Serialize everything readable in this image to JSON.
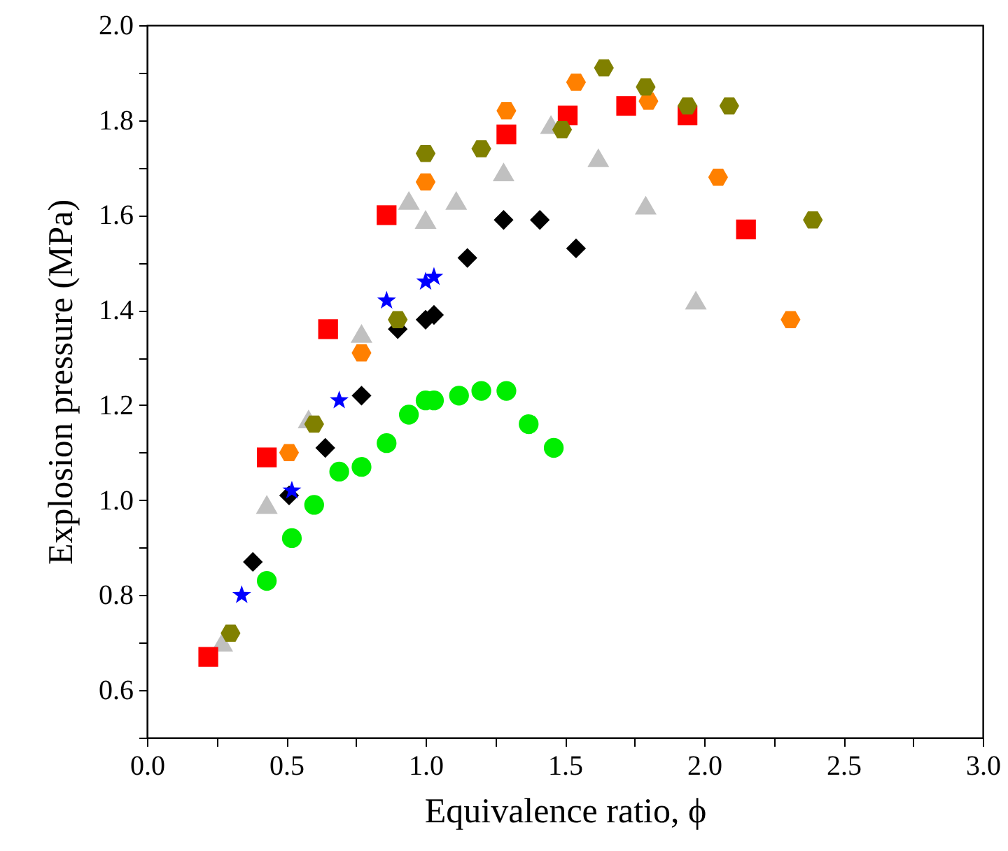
{
  "chart_data": {
    "type": "scatter",
    "xlabel": "Equivalence ratio, ϕ",
    "ylabel": "Explosion pressure (MPa)",
    "xlim": [
      0,
      3.0
    ],
    "ylim": [
      0.5,
      2.0
    ],
    "xticks": [
      {
        "value": 0,
        "label": "0.0"
      },
      {
        "value": 0.25,
        "label": null
      },
      {
        "value": 0.5,
        "label": "0.5"
      },
      {
        "value": 0.75,
        "label": null
      },
      {
        "value": 1,
        "label": "1.0"
      },
      {
        "value": 1.25,
        "label": null
      },
      {
        "value": 1.5,
        "label": "1.5"
      },
      {
        "value": 1.75,
        "label": null
      },
      {
        "value": 2,
        "label": "2.0"
      },
      {
        "value": 2.25,
        "label": null
      },
      {
        "value": 2.5,
        "label": "2.5"
      },
      {
        "value": 2.75,
        "label": null
      },
      {
        "value": 3,
        "label": "3.0"
      }
    ],
    "yticks": [
      {
        "value": 0.5,
        "label": null
      },
      0.6,
      {
        "value": 0.7,
        "label": null
      },
      0.8,
      {
        "value": 0.9,
        "label": null
      },
      {
        "value": 1,
        "label": "1.0"
      },
      {
        "value": 1.1,
        "label": null
      },
      1.2,
      {
        "value": 1.3,
        "label": null
      },
      1.4,
      {
        "value": 1.5,
        "label": null
      },
      1.6,
      {
        "value": 1.7,
        "label": null
      },
      1.8,
      {
        "value": 1.9,
        "label": null
      },
      {
        "value": 2,
        "label": "2.0"
      }
    ],
    "grid": false,
    "series": [
      {
        "color": "#c0c0c0",
        "marker": "triangle",
        "x": [
          0.27,
          0.43,
          0.58,
          0.77,
          0.94,
          1.0,
          1.11,
          1.28,
          1.45,
          1.62,
          1.79,
          1.97
        ],
        "values": [
          0.7,
          0.99,
          1.17,
          1.35,
          1.63,
          1.59,
          1.63,
          1.69,
          1.79,
          1.72,
          1.62,
          1.42
        ]
      },
      {
        "color": "#00ee00",
        "marker": "circle",
        "x": [
          0.43,
          0.52,
          0.6,
          0.69,
          0.77,
          0.86,
          0.94,
          1.0,
          1.03,
          1.12,
          1.2,
          1.29,
          1.37,
          1.46
        ],
        "values": [
          0.83,
          0.92,
          0.99,
          1.06,
          1.07,
          1.12,
          1.18,
          1.21,
          1.21,
          1.22,
          1.23,
          1.23,
          1.16,
          1.11
        ]
      },
      {
        "color": "#000000",
        "marker": "diamond",
        "x": [
          0.38,
          0.51,
          0.64,
          0.77,
          0.9,
          1.0,
          1.03,
          1.15,
          1.28,
          1.41,
          1.54
        ],
        "values": [
          0.87,
          1.01,
          1.11,
          1.22,
          1.36,
          1.38,
          1.39,
          1.51,
          1.59,
          1.59,
          1.53
        ]
      },
      {
        "color": "#0000ff",
        "marker": "star",
        "x": [
          0.34,
          0.52,
          0.69,
          0.86,
          1.0,
          1.03
        ],
        "values": [
          0.8,
          1.02,
          1.21,
          1.42,
          1.46,
          1.47
        ]
      },
      {
        "color": "#ff0000",
        "marker": "square",
        "x": [
          0.22,
          0.43,
          0.65,
          0.86,
          1.29,
          1.51,
          1.72,
          1.94,
          2.15
        ],
        "values": [
          0.67,
          1.09,
          1.36,
          1.6,
          1.77,
          1.81,
          1.83,
          1.81,
          1.57
        ]
      },
      {
        "color": "#ff8000",
        "x": [
          0.51,
          0.77,
          1.0,
          1.29,
          1.54,
          1.8,
          2.05,
          2.31
        ],
        "values": [
          1.1,
          1.31,
          1.67,
          1.82,
          1.88,
          1.84,
          1.68,
          1.38
        ]
      },
      {
        "color": "#808000",
        "x": [
          0.3,
          0.6,
          0.9,
          1.0,
          1.2,
          1.49,
          1.64,
          1.79,
          1.94,
          2.09,
          2.39
        ],
        "values": [
          0.72,
          1.16,
          1.38,
          1.73,
          1.74,
          1.78,
          1.91,
          1.87,
          1.83,
          1.83,
          1.59
        ]
      }
    ]
  }
}
